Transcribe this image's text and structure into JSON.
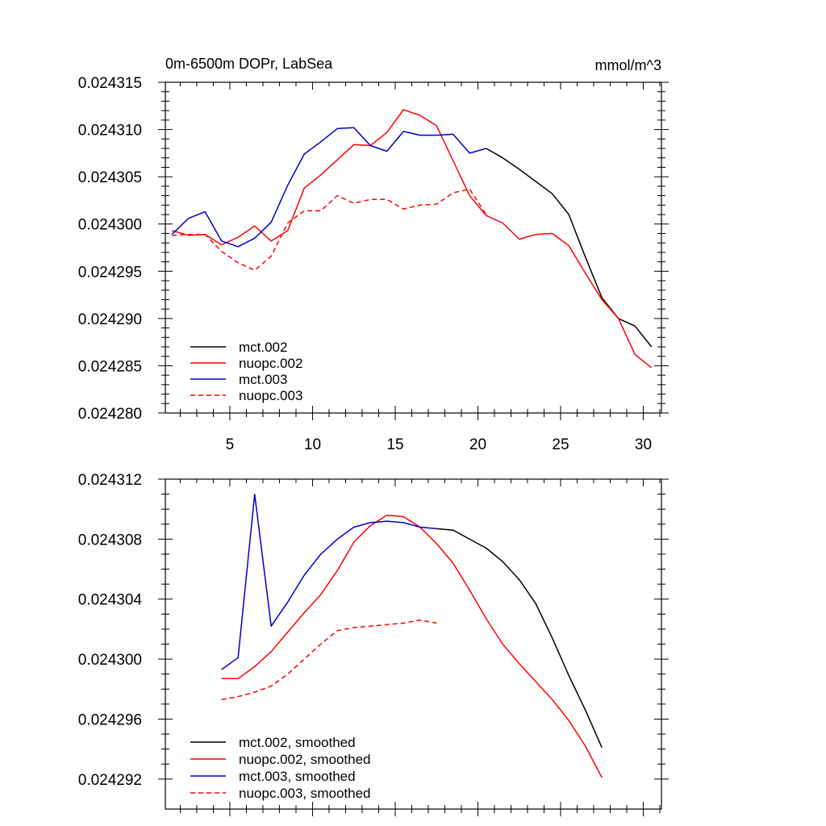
{
  "chart_data": [
    {
      "type": "line",
      "title": "0m-6500m DOPr, LabSea",
      "units": "mmol/m^3",
      "xlim": [
        1.1,
        31.1
      ],
      "ylim": [
        0.02428,
        0.024315
      ],
      "xticks": [
        5,
        10,
        15,
        20,
        25,
        30
      ],
      "xtick_labels": [
        "5",
        "10",
        "15",
        "20",
        "25",
        "30"
      ],
      "yticks": [
        0.02428,
        0.024285,
        0.02429,
        0.024295,
        0.0243,
        0.024305,
        0.02431,
        0.024315
      ],
      "ytick_labels": [
        "0.024280",
        "0.024285",
        "0.024290",
        "0.024295",
        "0.024300",
        "0.024305",
        "0.024310",
        "0.024315"
      ],
      "legend_position": "bottom-left",
      "series": [
        {
          "name": "mct.002",
          "color": "#000000",
          "dash": "solid",
          "x": [
            20.5,
            21.5,
            22.5,
            23.5,
            24.5,
            25.5,
            26.5,
            27.5,
            28.5,
            29.5,
            30.5
          ],
          "values": [
            0.024308,
            0.024307,
            0.0243058,
            0.0243045,
            0.0243032,
            0.024301,
            0.0242965,
            0.0242922,
            0.02429,
            0.0242892,
            0.024287
          ]
        },
        {
          "name": "nuopc.002",
          "color": "#ff0000",
          "dash": "solid",
          "x": [
            1.5,
            2.5,
            3.5,
            4.5,
            5.5,
            6.5,
            7.5,
            8.5,
            9.5,
            10.5,
            11.5,
            12.5,
            13.5,
            14.5,
            15.5,
            16.5,
            17.5,
            18.5,
            19.5,
            20.5,
            21.5,
            22.5,
            23.5,
            24.5,
            25.5,
            26.5,
            27.5,
            28.5,
            29.5,
            30.5
          ],
          "values": [
            0.0242993,
            0.0242988,
            0.0242989,
            0.0242978,
            0.0242986,
            0.0242998,
            0.0242982,
            0.0242993,
            0.0243038,
            0.0243052,
            0.0243068,
            0.0243084,
            0.0243083,
            0.0243097,
            0.0243121,
            0.0243115,
            0.0243104,
            0.0243067,
            0.024303,
            0.0243009,
            0.0243001,
            0.0242984,
            0.0242989,
            0.024299,
            0.0242977,
            0.0242948,
            0.024292,
            0.02429,
            0.0242862,
            0.0242848
          ]
        },
        {
          "name": "mct.003",
          "color": "#0000cc",
          "dash": "solid",
          "x": [
            1.5,
            2.5,
            3.5,
            4.5,
            5.5,
            6.5,
            7.5,
            8.5,
            9.5,
            10.5,
            11.5,
            12.5,
            13.5,
            14.5,
            15.5,
            16.5,
            17.5,
            18.5,
            19.5,
            20.5
          ],
          "values": [
            0.0242989,
            0.0243006,
            0.0243013,
            0.0242982,
            0.0242976,
            0.0242985,
            0.0243002,
            0.0243041,
            0.0243074,
            0.0243087,
            0.0243101,
            0.0243102,
            0.0243083,
            0.0243077,
            0.0243098,
            0.0243094,
            0.0243094,
            0.0243095,
            0.0243075,
            0.024308
          ]
        },
        {
          "name": "nuopc.003",
          "color": "#ff0000",
          "dash": "dashed",
          "x": [
            1.5,
            2.5,
            3.5,
            4.5,
            5.5,
            6.5,
            7.5,
            8.5,
            9.5,
            10.5,
            11.5,
            12.5,
            13.5,
            14.5,
            15.5,
            16.5,
            17.5,
            18.5,
            19.5,
            20.5
          ],
          "values": [
            0.0242988,
            0.0242989,
            0.0242989,
            0.0242971,
            0.0242959,
            0.0242951,
            0.0242966,
            0.0243001,
            0.0243014,
            0.0243014,
            0.024303,
            0.0243022,
            0.0243026,
            0.0243026,
            0.0243016,
            0.024302,
            0.0243021,
            0.0243033,
            0.0243037,
            0.024301
          ]
        }
      ]
    },
    {
      "type": "line",
      "title": "",
      "xlim": [
        1.1,
        31.1
      ],
      "ylim": [
        0.02429,
        0.024312
      ],
      "xticks": [
        5,
        10,
        15,
        20,
        25,
        30
      ],
      "yticks": [
        0.024292,
        0.024296,
        0.0243,
        0.024304,
        0.024308,
        0.024312
      ],
      "ytick_labels": [
        "0.024292",
        "0.024296",
        "0.024300",
        "0.024304",
        "0.024308",
        "0.024312"
      ],
      "legend_position": "bottom-left",
      "series": [
        {
          "name": "mct.002, smoothed",
          "color": "#000000",
          "dash": "solid",
          "x": [
            17.5,
            18.5,
            19.5,
            20.5,
            21.5,
            22.5,
            23.5,
            24.5,
            25.5,
            26.5,
            27.5
          ],
          "values": [
            0.0243087,
            0.0243086,
            0.024308,
            0.0243074,
            0.0243065,
            0.0243053,
            0.0243037,
            0.0243014,
            0.0242989,
            0.0242966,
            0.0242941
          ]
        },
        {
          "name": "nuopc.002, smoothed",
          "color": "#ff0000",
          "dash": "solid",
          "x": [
            4.5,
            5.5,
            6.5,
            7.5,
            8.5,
            9.5,
            10.5,
            11.5,
            12.5,
            13.5,
            14.5,
            15.5,
            16.5,
            17.5,
            18.5,
            19.5,
            20.5,
            21.5,
            22.5,
            23.5,
            24.5,
            25.5,
            26.5,
            27.5
          ],
          "values": [
            0.0242987,
            0.0242987,
            0.0242995,
            0.0243005,
            0.0243018,
            0.0243031,
            0.0243043,
            0.0243059,
            0.0243078,
            0.0243089,
            0.0243096,
            0.0243095,
            0.0243088,
            0.0243077,
            0.0243064,
            0.0243046,
            0.0243027,
            0.024301,
            0.0242997,
            0.0242985,
            0.0242973,
            0.0242959,
            0.0242942,
            0.0242921
          ]
        },
        {
          "name": "mct.003, smoothed",
          "color": "#0000cc",
          "dash": "solid",
          "x": [
            4.5,
            5.5,
            6.5,
            7.5,
            8.5,
            9.5,
            10.5,
            11.5,
            12.5,
            13.5,
            14.5,
            15.5,
            16.5,
            17.5
          ],
          "values": [
            0.0242993,
            0.0243001,
            0.024311,
            0.0243022,
            0.0243038,
            0.0243056,
            0.024307,
            0.024308,
            0.0243088,
            0.0243091,
            0.0243092,
            0.0243091,
            0.0243088,
            0.0243087
          ]
        },
        {
          "name": "nuopc.003, smoothed",
          "color": "#ff0000",
          "dash": "dashed",
          "x": [
            4.5,
            5.5,
            6.5,
            7.5,
            8.5,
            9.5,
            10.5,
            11.5,
            12.5,
            13.5,
            14.5,
            15.5,
            16.5,
            17.5
          ],
          "values": [
            0.0242973,
            0.0242975,
            0.0242978,
            0.0242982,
            0.024299,
            0.0243,
            0.024301,
            0.0243019,
            0.0243021,
            0.0243022,
            0.0243023,
            0.0243024,
            0.0243026,
            0.0243024
          ]
        }
      ]
    }
  ]
}
